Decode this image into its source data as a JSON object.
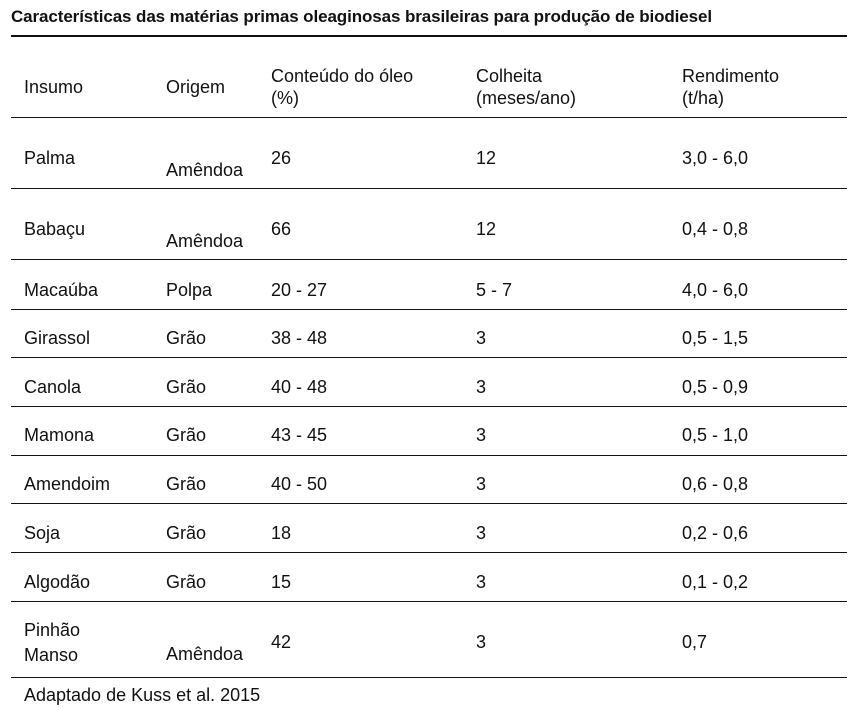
{
  "title": "Características das matérias primas oleaginosas brasileiras para produção de biodiesel",
  "header": {
    "insumo": "Insumo",
    "origem": "Origem",
    "conteudo_line1": "Conteúdo do óleo",
    "conteudo_line2": "(%)",
    "colheita_line1": "Colheita",
    "colheita_line2": "(meses/ano)",
    "rendimento_line1": "Rendimento",
    "rendimento_line2": "(t/ha)"
  },
  "rows": [
    {
      "insumo": "Palma",
      "origem": "Amêndoa",
      "conteudo": "26",
      "colheita": "12",
      "rendimento": "3,0 - 6,0"
    },
    {
      "insumo": "Babaçu",
      "origem": "Amêndoa",
      "conteudo": "66",
      "colheita": "12",
      "rendimento": "0,4 - 0,8"
    },
    {
      "insumo": "Macaúba",
      "origem": "Polpa",
      "conteudo": "20 - 27",
      "colheita": "5 - 7",
      "rendimento": "4,0 - 6,0"
    },
    {
      "insumo": "Girassol",
      "origem": "Grão",
      "conteudo": "38 - 48",
      "colheita": "3",
      "rendimento": "0,5 - 1,5"
    },
    {
      "insumo": "Canola",
      "origem": "Grão",
      "conteudo": "40 - 48",
      "colheita": "3",
      "rendimento": "0,5 - 0,9"
    },
    {
      "insumo": "Mamona",
      "origem": "Grão",
      "conteudo": "43 - 45",
      "colheita": "3",
      "rendimento": "0,5 - 1,0"
    },
    {
      "insumo": "Amendoim",
      "origem": "Grão",
      "conteudo": "40 - 50",
      "colheita": "3",
      "rendimento": "0,6 - 0,8"
    },
    {
      "insumo": "Soja",
      "origem": "Grão",
      "conteudo": "18",
      "colheita": "3",
      "rendimento": "0,2 - 0,6"
    },
    {
      "insumo": "Algodão",
      "origem": "Grão",
      "conteudo": "15",
      "colheita": "3",
      "rendimento": "0,1 - 0,2"
    },
    {
      "insumo": "Pinhão",
      "insumo_line2": "Manso",
      "origem": "Amêndoa",
      "conteudo": "42",
      "colheita": "3",
      "rendimento": "0,7"
    }
  ],
  "footer": "Adaptado de Kuss et al. 2015"
}
